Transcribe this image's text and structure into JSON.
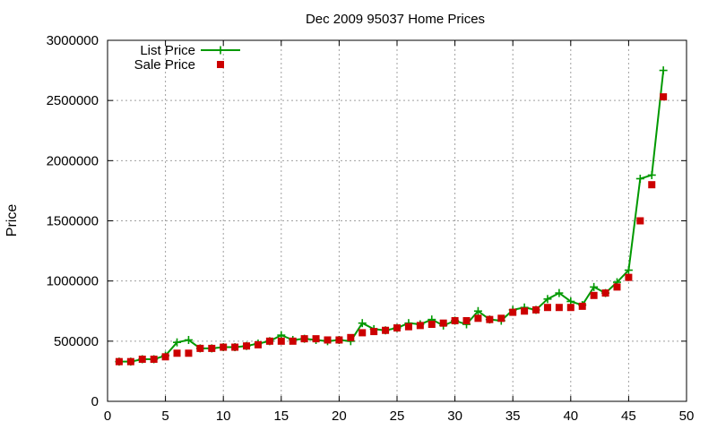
{
  "chart_data": {
    "type": "line",
    "title": "Dec 2009 95037 Home Prices",
    "xlabel": "",
    "ylabel": "Price",
    "xlim": [
      0,
      50
    ],
    "ylim": [
      0,
      3000000
    ],
    "xticks": [
      0,
      5,
      10,
      15,
      20,
      25,
      30,
      35,
      40,
      45,
      50
    ],
    "yticks": [
      0,
      500000,
      1000000,
      1500000,
      2000000,
      2500000,
      3000000
    ],
    "grid": true,
    "legend_position": "top-left",
    "x": [
      1,
      2,
      3,
      4,
      5,
      6,
      7,
      8,
      9,
      10,
      11,
      12,
      13,
      14,
      15,
      16,
      17,
      18,
      19,
      20,
      21,
      22,
      23,
      24,
      25,
      26,
      27,
      28,
      29,
      30,
      31,
      32,
      33,
      34,
      35,
      36,
      37,
      38,
      39,
      40,
      41,
      42,
      43,
      44,
      45,
      46,
      47,
      48
    ],
    "series": [
      {
        "name": "List Price",
        "style": "line-points",
        "marker": "plus",
        "color": "#009900",
        "values": [
          330000,
          330000,
          350000,
          350000,
          380000,
          490000,
          510000,
          440000,
          440000,
          450000,
          450000,
          460000,
          480000,
          500000,
          550000,
          510000,
          520000,
          510000,
          500000,
          510000,
          500000,
          650000,
          600000,
          590000,
          610000,
          650000,
          640000,
          680000,
          630000,
          670000,
          640000,
          750000,
          680000,
          670000,
          760000,
          780000,
          760000,
          850000,
          900000,
          830000,
          800000,
          950000,
          900000,
          990000,
          1090000,
          1850000,
          1880000,
          2750000
        ]
      },
      {
        "name": "Sale Price",
        "style": "points",
        "marker": "square",
        "color": "#cc0000",
        "values": [
          330000,
          330000,
          350000,
          350000,
          370000,
          400000,
          400000,
          440000,
          440000,
          450000,
          450000,
          460000,
          470000,
          500000,
          500000,
          500000,
          520000,
          520000,
          510000,
          510000,
          530000,
          570000,
          580000,
          590000,
          610000,
          620000,
          630000,
          640000,
          650000,
          670000,
          670000,
          690000,
          680000,
          690000,
          740000,
          750000,
          760000,
          780000,
          780000,
          780000,
          790000,
          880000,
          900000,
          950000,
          1030000,
          1500000,
          1800000,
          2530000
        ]
      }
    ]
  }
}
